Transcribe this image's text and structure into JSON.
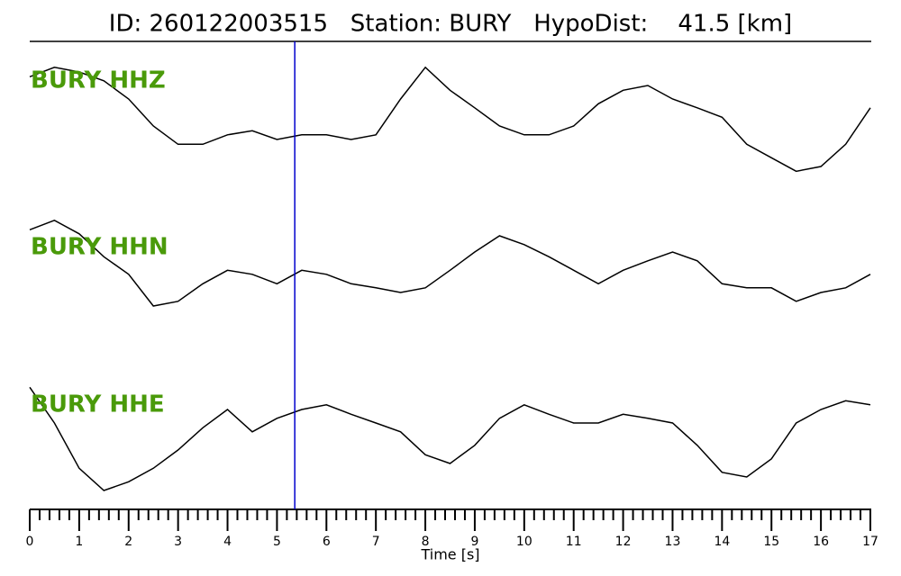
{
  "chart_data": {
    "type": "line",
    "title": "ID: 260122003515   Station: BURY   HypoDist:    41.5 [km]",
    "xlabel": "Time [s]",
    "xlim": [
      0,
      17
    ],
    "xticks": [
      0,
      1,
      2,
      3,
      4,
      5,
      6,
      7,
      8,
      9,
      10,
      11,
      12,
      13,
      14,
      15,
      16,
      17
    ],
    "xminor": [
      0.2,
      0.4,
      0.6,
      0.8,
      1.2,
      1.4,
      1.6,
      1.8,
      2.2,
      2.4,
      2.6,
      2.8,
      3.2,
      3.4,
      3.6,
      3.8,
      4.2,
      4.4,
      4.6,
      4.8,
      5.2,
      5.4,
      5.6,
      5.8,
      6.2,
      6.4,
      6.6,
      6.8,
      7.2,
      7.4,
      7.6,
      7.8,
      8.2,
      8.4,
      8.6,
      8.8,
      9.2,
      9.4,
      9.6,
      9.8,
      10.2,
      10.4,
      10.6,
      10.8,
      11.2,
      11.4,
      11.6,
      11.8,
      12.2,
      12.4,
      12.6,
      12.8,
      13.2,
      13.4,
      13.6,
      13.8,
      14.2,
      14.4,
      14.6,
      14.8,
      15.2,
      15.4,
      15.6,
      15.8,
      16.2,
      16.4,
      16.6,
      16.8
    ],
    "pick": 5.36,
    "pick_color": "#0000cc",
    "label_color": "#4a9a0a",
    "ylim": [
      -1,
      1
    ],
    "x": [
      0,
      0.5,
      1,
      1.5,
      2,
      2.5,
      3,
      3.5,
      4,
      4.5,
      5,
      5.5,
      6,
      6.5,
      7,
      7.5,
      8,
      8.5,
      9,
      9.5,
      10,
      10.5,
      11,
      11.5,
      12,
      12.5,
      13,
      13.5,
      14,
      14.5,
      15,
      15.5,
      16,
      16.5,
      17
    ],
    "series": [
      {
        "name": "BURY HHZ",
        "color": "#000000",
        "values": [
          0.53,
          0.67,
          0.6,
          0.47,
          0.2,
          -0.2,
          -0.47,
          -0.47,
          -0.33,
          -0.27,
          -0.4,
          -0.33,
          -0.33,
          -0.4,
          -0.33,
          0.2,
          0.67,
          0.33,
          0.07,
          -0.2,
          -0.33,
          -0.33,
          -0.2,
          0.13,
          0.33,
          0.4,
          0.2,
          0.07,
          -0.07,
          -0.47,
          -0.67,
          -0.87,
          -0.8,
          -0.47,
          0.07
        ]
      },
      {
        "name": "BURY HHN",
        "color": "#000000",
        "values": [
          0.73,
          0.87,
          0.67,
          0.33,
          0.07,
          -0.4,
          -0.33,
          -0.07,
          0.13,
          0.07,
          -0.07,
          0.13,
          0.07,
          -0.07,
          -0.13,
          -0.2,
          -0.13,
          0.13,
          0.4,
          0.64,
          0.51,
          0.33,
          0.13,
          -0.07,
          0.13,
          0.27,
          0.4,
          0.27,
          -0.07,
          -0.13,
          -0.13,
          -0.33,
          -0.2,
          -0.13,
          0.07
        ]
      },
      {
        "name": "BURY HHE",
        "color": "#000000",
        "values": [
          0.73,
          0.2,
          -0.47,
          -0.8,
          -0.67,
          -0.47,
          -0.2,
          0.13,
          0.4,
          0.07,
          0.27,
          0.4,
          0.47,
          0.33,
          0.2,
          0.07,
          -0.27,
          -0.4,
          -0.13,
          0.27,
          0.47,
          0.33,
          0.2,
          0.2,
          0.33,
          0.27,
          0.2,
          -0.13,
          -0.53,
          -0.6,
          -0.33,
          0.2,
          0.4,
          0.53,
          0.47
        ]
      }
    ]
  }
}
